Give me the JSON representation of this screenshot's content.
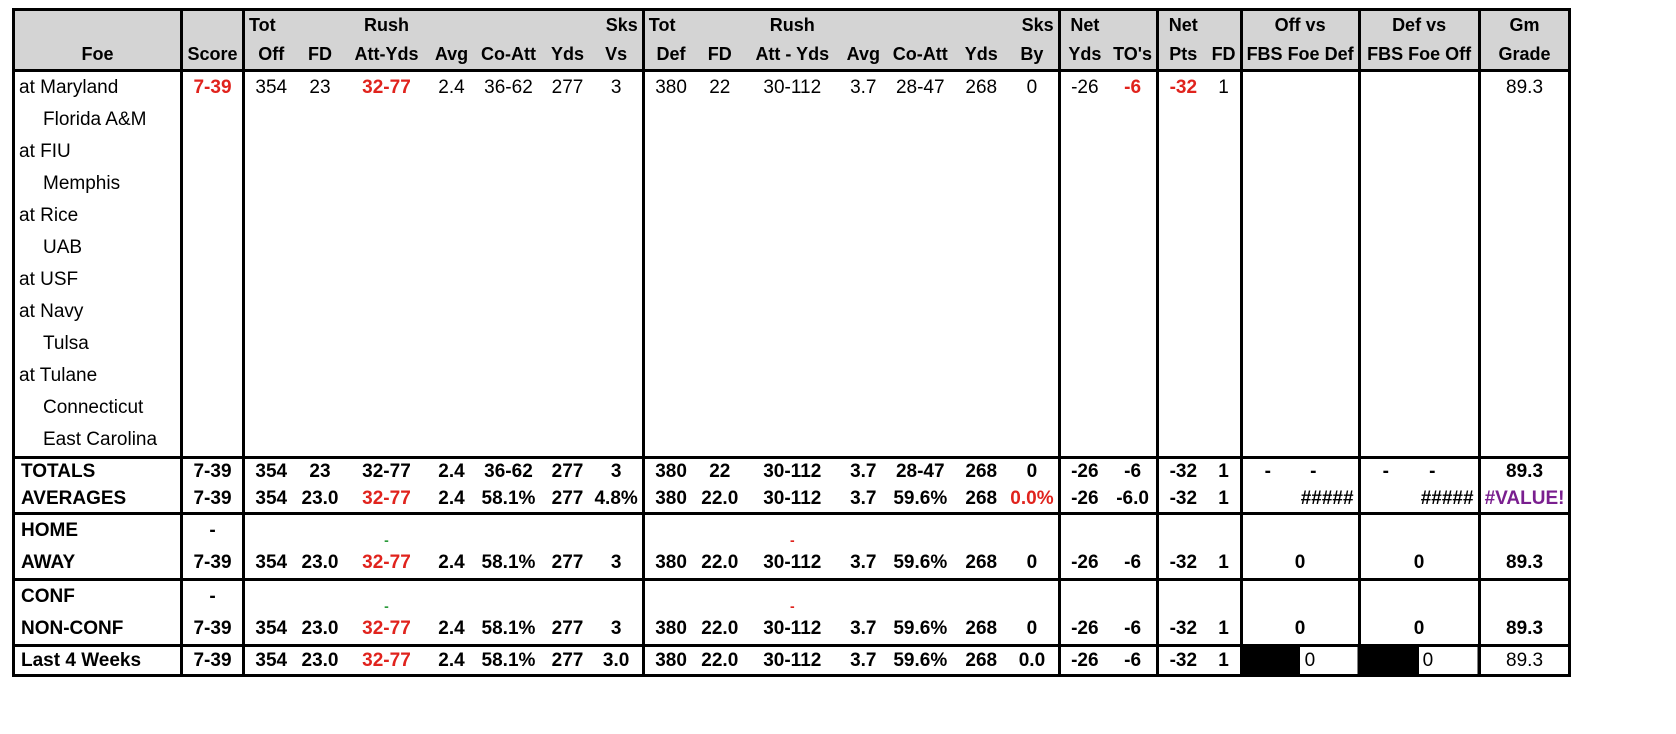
{
  "header": {
    "row1": [
      "",
      "",
      "Tot",
      "",
      "Rush",
      "",
      "",
      "",
      "Sks",
      "Tot",
      "",
      "Rush",
      "",
      "",
      "",
      "Sks",
      "Net",
      "",
      "Net",
      "",
      "Off vs",
      "Def vs",
      "Gm"
    ],
    "row2": [
      "Foe",
      "Score",
      "Off",
      "FD",
      "Att-Yds",
      "Avg",
      "Co-Att",
      "Yds",
      "Vs",
      "Def",
      "FD",
      "Att - Yds",
      "Avg",
      "Co-Att",
      "Yds",
      "By",
      "Yds",
      "TO's",
      "Pts",
      "FD",
      "FBS Foe Def",
      "FBS Foe Off",
      "Grade"
    ]
  },
  "games": [
    {
      "foe": "at Maryland",
      "home": false,
      "score": "7-39",
      "tot_off": "354",
      "fd": "23",
      "rush": "32-77",
      "avg": "2.4",
      "co_att": "36-62",
      "yds": "277",
      "sks_vs": "3",
      "tot_def": "380",
      "dfd": "22",
      "drush": "30-112",
      "davg": "3.7",
      "dco_att": "28-47",
      "dyds": "268",
      "sks_by": "0",
      "net_yds": "-26",
      "net_to": "-6",
      "net_pts": "-32",
      "net_fd": "1",
      "off_vs": "",
      "def_vs": "",
      "grade": "89.3"
    },
    {
      "foe": "Florida A&M",
      "home": true
    },
    {
      "foe": "at FIU",
      "home": false
    },
    {
      "foe": "Memphis",
      "home": true
    },
    {
      "foe": "at Rice",
      "home": false
    },
    {
      "foe": "UAB",
      "home": true
    },
    {
      "foe": "at USF",
      "home": false
    },
    {
      "foe": "at Navy",
      "home": false
    },
    {
      "foe": "Tulsa",
      "home": true
    },
    {
      "foe": "at Tulane",
      "home": false
    },
    {
      "foe": "Connecticut",
      "home": true
    },
    {
      "foe": "East Carolina",
      "home": true
    }
  ],
  "totals": {
    "label": "TOTALS",
    "score": "7-39",
    "tot_off": "354",
    "fd": "23",
    "rush": "32-77",
    "avg": "2.4",
    "co_att": "36-62",
    "yds": "277",
    "sks_vs": "3",
    "tot_def": "380",
    "dfd": "22",
    "drush": "30-112",
    "davg": "3.7",
    "dco_att": "28-47",
    "dyds": "268",
    "sks_by": "0",
    "net_yds": "-26",
    "net_to": "-6",
    "net_pts": "-32",
    "net_fd": "1",
    "off_a": "-",
    "off_b": "-",
    "def_a": "-",
    "def_b": "-",
    "grade": "89.3"
  },
  "averages": {
    "label": "AVERAGES",
    "score": "7-39",
    "tot_off": "354",
    "fd": "23.0",
    "rush": "32-77",
    "avg": "2.4",
    "co_att": "58.1%",
    "yds": "277",
    "sks_vs": "4.8%",
    "tot_def": "380",
    "dfd": "22.0",
    "drush": "30-112",
    "davg": "3.7",
    "dco_att": "59.6%",
    "dyds": "268",
    "sks_by": "0.0%",
    "net_yds": "-26",
    "net_to": "-6.0",
    "net_pts": "-32",
    "net_fd": "1",
    "off_vs": "#####",
    "def_vs": "#####",
    "grade": "#VALUE!"
  },
  "home": {
    "label": "HOME",
    "score": "-",
    "rush": "-",
    "drush": "-"
  },
  "away": {
    "label": "AWAY",
    "score": "7-39",
    "tot_off": "354",
    "fd": "23.0",
    "rush": "32-77",
    "avg": "2.4",
    "co_att": "58.1%",
    "yds": "277",
    "sks_vs": "3",
    "tot_def": "380",
    "dfd": "22.0",
    "drush": "30-112",
    "davg": "3.7",
    "dco_att": "59.6%",
    "dyds": "268",
    "sks_by": "0",
    "net_yds": "-26",
    "net_to": "-6",
    "net_pts": "-32",
    "net_fd": "1",
    "off_vs": "0",
    "def_vs": "0",
    "grade": "89.3"
  },
  "conf": {
    "label": "CONF",
    "score": "-",
    "rush": "-",
    "drush": "-"
  },
  "nonconf": {
    "label": "NON-CONF",
    "score": "7-39",
    "tot_off": "354",
    "fd": "23.0",
    "rush": "32-77",
    "avg": "2.4",
    "co_att": "58.1%",
    "yds": "277",
    "sks_vs": "3",
    "tot_def": "380",
    "dfd": "22.0",
    "drush": "30-112",
    "davg": "3.7",
    "dco_att": "59.6%",
    "dyds": "268",
    "sks_by": "0",
    "net_yds": "-26",
    "net_to": "-6",
    "net_pts": "-32",
    "net_fd": "1",
    "off_vs": "0",
    "def_vs": "0",
    "grade": "89.3"
  },
  "last4": {
    "label": "Last 4 Weeks",
    "score": "7-39",
    "tot_off": "354",
    "fd": "23.0",
    "rush": "32-77",
    "avg": "2.4",
    "co_att": "58.1%",
    "yds": "277",
    "sks_vs": "3.0",
    "tot_def": "380",
    "dfd": "22.0",
    "drush": "30-112",
    "davg": "3.7",
    "dco_att": "59.6%",
    "dyds": "268",
    "sks_by": "0.0",
    "net_yds": "-26",
    "net_to": "-6",
    "net_pts": "-32",
    "net_fd": "1",
    "off_vs": "0",
    "def_vs": "0",
    "grade": "89.3"
  },
  "colors": {
    "header_bg": "#d4d4d4",
    "negative": "#e0231d",
    "positive": "#2a9a3a",
    "error": "#7a1f8f"
  }
}
